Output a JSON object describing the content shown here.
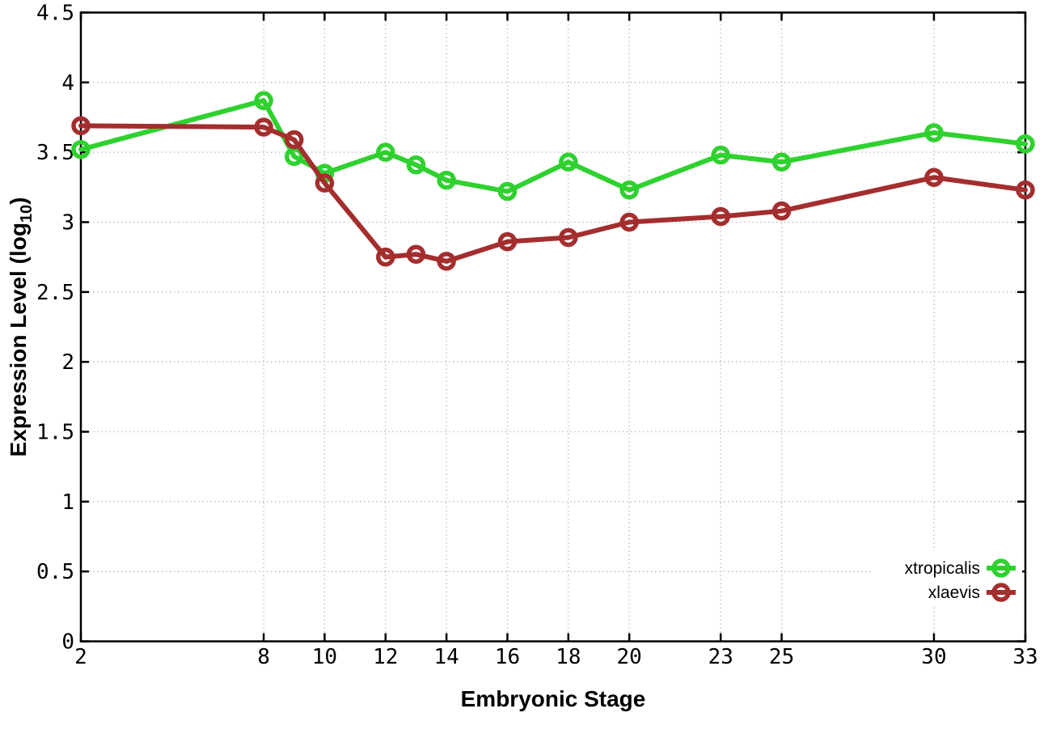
{
  "chart_data": {
    "type": "line",
    "title": "",
    "xlabel": "Embryonic Stage",
    "ylabel": {
      "prefix": "Expression Level (log",
      "subscript": "10",
      "suffix": ")"
    },
    "x": [
      2,
      8,
      9,
      10,
      12,
      13,
      14,
      16,
      18,
      20,
      23,
      25,
      30,
      33
    ],
    "series": [
      {
        "name": "xtropicalis",
        "color": "#2fd12f",
        "marker": "open-circle",
        "values": [
          3.52,
          3.87,
          3.47,
          3.35,
          3.5,
          3.41,
          3.3,
          3.22,
          3.43,
          3.23,
          3.48,
          3.43,
          3.64,
          3.56
        ]
      },
      {
        "name": "xlaevis",
        "color": "#a42e2e",
        "marker": "open-circle",
        "values": [
          3.69,
          3.68,
          3.59,
          3.28,
          2.75,
          2.77,
          2.72,
          2.86,
          2.89,
          3.0,
          3.04,
          3.08,
          3.32,
          3.23
        ]
      }
    ],
    "xlim": [
      2,
      33
    ],
    "ylim": [
      0,
      4.5
    ],
    "xticks": [
      2,
      8,
      10,
      12,
      14,
      16,
      18,
      20,
      23,
      25,
      30,
      33
    ],
    "yticks": [
      0,
      0.5,
      1,
      1.5,
      2,
      2.5,
      3,
      3.5,
      4,
      4.5
    ],
    "ytick_labels": [
      "0",
      "0.5",
      "1",
      "1.5",
      "2",
      "2.5",
      "3",
      "3.5",
      "4",
      "4.5"
    ],
    "grid": true,
    "legend_position": "bottom-right"
  },
  "styles": {
    "background": "#ffffff",
    "grid_color": "#bcbcbc",
    "axis_color": "#000000",
    "text_color": "#000000"
  }
}
